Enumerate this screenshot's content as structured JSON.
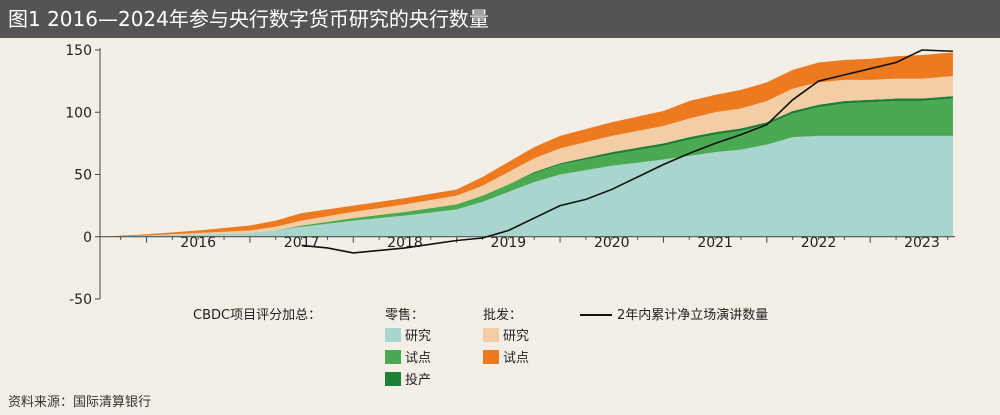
{
  "title": "图1  2016—2024年参与央行数字货币研究的央行数量",
  "source": "资料来源：国际清算银行",
  "colors": {
    "retail_research": "#a8d5cd",
    "retail_pilot": "#4aaa52",
    "retail_launched": "#1e7f35",
    "wholesale_research": "#f3cda6",
    "wholesale_pilot": "#ee7a1f",
    "speech_line": "#111111"
  },
  "chart_data": {
    "type": "area",
    "title": "2016—2024年参与央行数字货币研究的央行数量",
    "ylim": [
      -50,
      150
    ],
    "yticks": [
      -50,
      0,
      50,
      100,
      150
    ],
    "xlim": [
      2015.55,
      2023.82
    ],
    "year_labels": [
      "2016",
      "2017",
      "2018",
      "2019",
      "2020",
      "2021",
      "2022",
      "2023"
    ],
    "x": [
      2015.55,
      2016.0,
      2016.5,
      2017.0,
      2017.25,
      2017.5,
      2018.0,
      2018.5,
      2019.0,
      2019.25,
      2019.5,
      2019.75,
      2020.0,
      2020.5,
      2021.0,
      2021.25,
      2021.5,
      2021.75,
      2022.0,
      2022.25,
      2022.5,
      2022.75,
      2023.0,
      2023.25,
      2023.5,
      2023.8
    ],
    "series": [
      {
        "name": "零售:研究",
        "color_key": "retail_research",
        "values": [
          0,
          1,
          2,
          3,
          5,
          8,
          13,
          17,
          22,
          28,
          36,
          44,
          50,
          57,
          62,
          65,
          68,
          70,
          74,
          80,
          81,
          81,
          81,
          81,
          81,
          81
        ]
      },
      {
        "name": "零售:试点",
        "color_key": "retail_pilot",
        "values": [
          0,
          0,
          0,
          0,
          0,
          1,
          2,
          3,
          4,
          5,
          6,
          7,
          8,
          9,
          11,
          13,
          14,
          15,
          16,
          19,
          23,
          26,
          27,
          28,
          28,
          30
        ]
      },
      {
        "name": "零售:投产",
        "color_key": "retail_launched",
        "values": [
          0,
          0,
          0,
          0,
          0,
          0,
          0,
          0,
          0,
          0,
          0,
          1,
          1,
          2,
          2,
          2,
          2,
          2,
          2,
          2,
          2,
          2,
          2,
          2,
          2,
          2
        ]
      },
      {
        "name": "批发:研究",
        "color_key": "wholesale_research",
        "values": [
          0,
          0,
          1,
          2,
          3,
          4,
          5,
          6,
          7,
          8,
          10,
          11,
          12,
          13,
          14,
          15,
          16,
          16,
          17,
          18,
          18,
          17,
          16,
          16,
          16,
          16
        ]
      },
      {
        "name": "批发:试点",
        "color_key": "wholesale_pilot",
        "values": [
          0,
          1,
          2,
          4,
          5,
          6,
          5,
          5,
          5,
          7,
          8,
          9,
          10,
          11,
          12,
          14,
          14,
          15,
          15,
          15,
          16,
          16,
          17,
          18,
          19,
          19
        ]
      }
    ],
    "line": {
      "name": "2年内累计净立场演讲数量",
      "color_key": "speech_line",
      "x": [
        2017.5,
        2017.75,
        2018.0,
        2018.25,
        2018.5,
        2018.75,
        2019.0,
        2019.25,
        2019.5,
        2019.75,
        2020.0,
        2020.25,
        2020.5,
        2020.75,
        2021.0,
        2021.25,
        2021.5,
        2021.75,
        2022.0,
        2022.25,
        2022.5,
        2022.75,
        2023.0,
        2023.25,
        2023.5,
        2023.8
      ],
      "values": [
        -7,
        -9,
        -13,
        -11,
        -9,
        -6,
        -3,
        -1,
        5,
        15,
        25,
        30,
        38,
        48,
        58,
        67,
        75,
        82,
        90,
        110,
        125,
        130,
        135,
        140,
        150,
        149
      ]
    },
    "legend": {
      "heading": "CBDC项目评分加总：",
      "retail_heading": "零售：",
      "wholesale_heading": "批发：",
      "retail_items": [
        "研究",
        "试点",
        "投产"
      ],
      "wholesale_items": [
        "研究",
        "试点"
      ],
      "line_label": "2年内累计净立场演讲数量"
    }
  }
}
